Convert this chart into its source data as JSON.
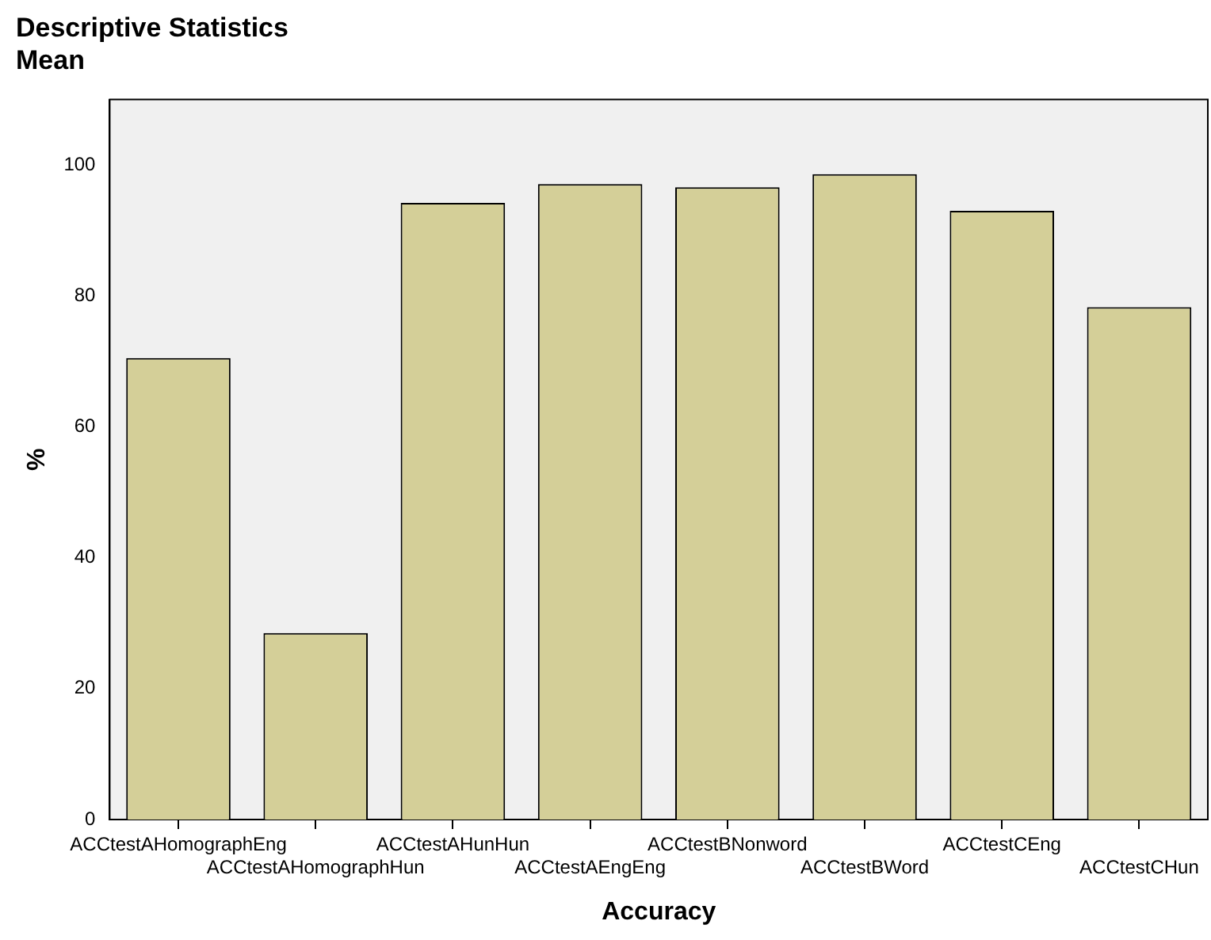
{
  "chart_data": {
    "type": "bar",
    "title": "Descriptive Statistics",
    "subtitle": "Mean",
    "xlabel": "Accuracy",
    "ylabel": "%",
    "categories": [
      "ACCtestAHomographEng",
      "ACCtestAHomographHun",
      "ACCtestAHunHun",
      "ACCtestAEngEng",
      "ACCtestBNonword",
      "ACCtestBWord",
      "ACCtestCEng",
      "ACCtestCHun"
    ],
    "values": [
      70.5,
      28.5,
      94.2,
      97.1,
      96.6,
      98.6,
      93.0,
      78.3
    ],
    "color": "#d4cf98",
    "ylim": [
      0,
      110
    ],
    "yticks": [
      0,
      20,
      40,
      60,
      80,
      100
    ],
    "grid": false,
    "legend": false
  }
}
